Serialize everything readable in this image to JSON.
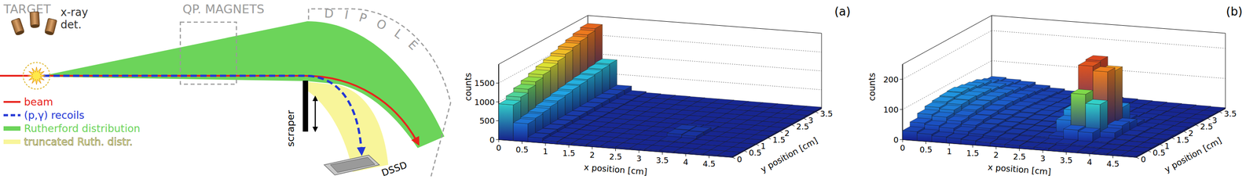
{
  "diagram": {
    "labels": {
      "target": "TARGET",
      "magnets": "QP. MAGNETS",
      "dipole": "DIPOLE",
      "detectors": "x-ray det.",
      "scraper": "scraper",
      "detector": "DSSD"
    },
    "legend": [
      {
        "label": "beam",
        "color": "#e8231c",
        "line_style": "solid"
      },
      {
        "label": "(p,γ) recoils",
        "color": "#2437d6",
        "line_style": "dashed"
      },
      {
        "label": "Rutherford distribution",
        "color": "#6cd45a",
        "line_style": "band"
      },
      {
        "label": "truncated Ruth. distr.",
        "color": "#f8f59a",
        "line_style": "band"
      }
    ]
  },
  "chart_data": [
    {
      "type": "lego",
      "panel_label": "(a)",
      "x_label": "x position [cm]",
      "y_label": "y position [cm]",
      "z_label": "counts",
      "x_edges": [
        0,
        0.3125,
        0.625,
        0.9375,
        1.25,
        1.5625,
        1.875,
        2.1875,
        2.5,
        2.8125,
        3.125,
        3.4375,
        3.75,
        4.0625,
        4.375,
        4.6875,
        5
      ],
      "y_edges": [
        0,
        0.3125,
        0.625,
        0.9375,
        1.25,
        1.5625,
        1.875,
        2.1875,
        2.5,
        2.8125,
        3.125,
        3.4375,
        3.75
      ],
      "counts": [
        [
          950,
          480,
          130,
          70,
          55,
          50,
          45,
          42,
          40,
          38,
          36,
          35,
          33,
          32,
          30,
          28
        ],
        [
          1050,
          520,
          140,
          75,
          58,
          52,
          47,
          44,
          41,
          39,
          38,
          36,
          34,
          32,
          31,
          29
        ],
        [
          1150,
          560,
          150,
          78,
          60,
          54,
          48,
          45,
          42,
          40,
          60,
          55,
          35,
          33,
          31,
          30
        ],
        [
          1240,
          610,
          160,
          80,
          62,
          55,
          50,
          46,
          43,
          42,
          140,
          120,
          36,
          34,
          32,
          30
        ],
        [
          1320,
          650,
          170,
          84,
          63,
          56,
          51,
          47,
          44,
          43,
          150,
          130,
          37,
          35,
          33,
          31
        ],
        [
          1400,
          690,
          178,
          86,
          64,
          57,
          52,
          48,
          45,
          43,
          70,
          60,
          37,
          35,
          33,
          31
        ],
        [
          1470,
          730,
          185,
          88,
          65,
          58,
          53,
          49,
          46,
          44,
          42,
          40,
          38,
          36,
          34,
          32
        ],
        [
          1540,
          760,
          192,
          90,
          66,
          59,
          54,
          50,
          47,
          45,
          43,
          41,
          39,
          37,
          35,
          33
        ],
        [
          1610,
          790,
          198,
          92,
          67,
          60,
          55,
          51,
          48,
          46,
          44,
          42,
          40,
          38,
          36,
          34
        ],
        [
          1670,
          820,
          205,
          94,
          68,
          61,
          56,
          52,
          49,
          47,
          45,
          43,
          41,
          39,
          37,
          35
        ],
        [
          1730,
          850,
          210,
          96,
          69,
          62,
          57,
          53,
          50,
          48,
          46,
          44,
          42,
          40,
          38,
          36
        ],
        [
          1790,
          880,
          215,
          98,
          70,
          63,
          58,
          54,
          51,
          49,
          47,
          45,
          43,
          41,
          39,
          37
        ]
      ],
      "xlim": [
        0,
        5
      ],
      "ylim": [
        0,
        3.75
      ],
      "zlim": [
        0,
        2000
      ],
      "xticks": [
        0,
        0.5,
        1,
        1.5,
        2,
        2.5,
        3,
        3.5,
        4,
        4.5
      ],
      "yticks": [
        0,
        0.5,
        1,
        1.5,
        2,
        2.5,
        3,
        3.5
      ],
      "zticks": [
        0,
        500,
        1000,
        1500
      ],
      "grid": true
    },
    {
      "type": "lego",
      "panel_label": "(b)",
      "x_label": "x position [cm]",
      "y_label": "y position [cm]",
      "z_label": "counts",
      "x_edges": [
        0,
        0.3125,
        0.625,
        0.9375,
        1.25,
        1.5625,
        1.875,
        2.1875,
        2.5,
        2.8125,
        3.125,
        3.4375,
        3.75,
        4.0625,
        4.375,
        4.6875,
        5
      ],
      "y_edges": [
        0,
        0.3125,
        0.625,
        0.9375,
        1.25,
        1.5625,
        1.875,
        2.1875,
        2.5,
        2.8125,
        3.125,
        3.4375,
        3.75
      ],
      "counts": [
        [
          30,
          25,
          20,
          18,
          15,
          12,
          10,
          10,
          8,
          8,
          6,
          6,
          5,
          5,
          4,
          4
        ],
        [
          45,
          40,
          35,
          28,
          22,
          18,
          15,
          12,
          10,
          10,
          12,
          10,
          8,
          6,
          5,
          4
        ],
        [
          60,
          55,
          45,
          35,
          28,
          22,
          18,
          15,
          14,
          20,
          45,
          40,
          12,
          8,
          6,
          5
        ],
        [
          70,
          65,
          50,
          40,
          30,
          25,
          20,
          18,
          16,
          60,
          150,
          120,
          30,
          10,
          7,
          5
        ],
        [
          75,
          70,
          55,
          42,
          32,
          26,
          22,
          20,
          18,
          80,
          230,
          215,
          40,
          12,
          8,
          6
        ],
        [
          78,
          72,
          58,
          45,
          34,
          28,
          24,
          22,
          20,
          70,
          235,
          205,
          35,
          12,
          8,
          6
        ],
        [
          80,
          70,
          60,
          48,
          35,
          30,
          26,
          24,
          22,
          30,
          90,
          70,
          20,
          10,
          8,
          6
        ],
        [
          75,
          68,
          58,
          46,
          34,
          28,
          25,
          22,
          20,
          18,
          20,
          18,
          12,
          8,
          6,
          5
        ],
        [
          70,
          62,
          55,
          44,
          32,
          26,
          24,
          20,
          18,
          16,
          14,
          12,
          10,
          8,
          6,
          5
        ],
        [
          65,
          58,
          50,
          40,
          30,
          24,
          22,
          18,
          16,
          14,
          12,
          10,
          8,
          6,
          5,
          4
        ],
        [
          55,
          50,
          44,
          36,
          28,
          22,
          20,
          16,
          14,
          12,
          10,
          8,
          7,
          5,
          4,
          4
        ],
        [
          48,
          44,
          40,
          32,
          25,
          20,
          18,
          14,
          12,
          10,
          8,
          7,
          6,
          5,
          4,
          3
        ]
      ],
      "xlim": [
        0,
        5
      ],
      "ylim": [
        0,
        3.75
      ],
      "zlim": [
        0,
        250
      ],
      "xticks": [
        0,
        0.5,
        1,
        1.5,
        2,
        2.5,
        3,
        3.5,
        4,
        4.5
      ],
      "yticks": [
        0,
        0.5,
        1,
        1.5,
        2,
        2.5,
        3,
        3.5
      ],
      "zticks": [
        0,
        100,
        200
      ],
      "grid": true
    }
  ]
}
